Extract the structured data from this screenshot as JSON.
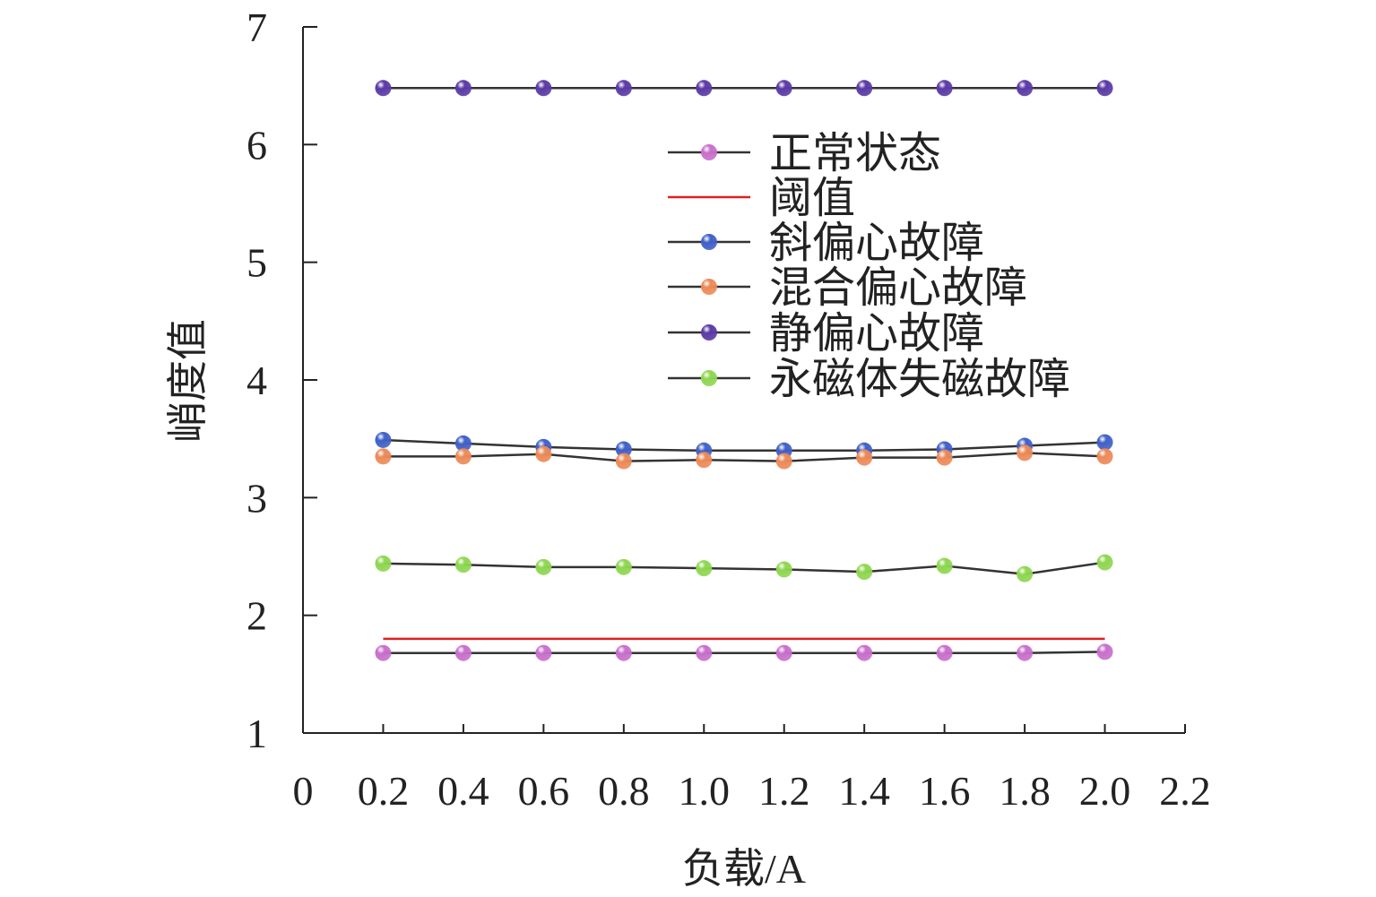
{
  "chart_data": {
    "type": "line",
    "title": "",
    "xlabel": "负载/A",
    "ylabel": "峭度值",
    "xlim": [
      0,
      2.2
    ],
    "ylim": [
      1,
      7
    ],
    "xticks": [
      "0",
      "0.2",
      "0.4",
      "0.6",
      "0.8",
      "1.0",
      "1.2",
      "1.4",
      "1.6",
      "1.8",
      "2.0",
      "2.2"
    ],
    "yticks": [
      "1",
      "2",
      "3",
      "4",
      "5",
      "6",
      "7"
    ],
    "grid": false,
    "legend_position": "top-right",
    "x": [
      0.2,
      0.4,
      0.6,
      0.8,
      1.0,
      1.2,
      1.4,
      1.6,
      1.8,
      2.0
    ],
    "series": [
      {
        "name": "正常状态",
        "color": "#c86fcc",
        "marker": true,
        "values": [
          1.68,
          1.68,
          1.68,
          1.68,
          1.68,
          1.68,
          1.68,
          1.68,
          1.68,
          1.69
        ]
      },
      {
        "name": "阈值",
        "color": "#e02020",
        "marker": false,
        "values": [
          1.8,
          1.8,
          1.8,
          1.8,
          1.8,
          1.8,
          1.8,
          1.8,
          1.8,
          1.8
        ]
      },
      {
        "name": "斜偏心故障",
        "color": "#4060c8",
        "marker": true,
        "values": [
          3.49,
          3.46,
          3.43,
          3.41,
          3.4,
          3.4,
          3.4,
          3.41,
          3.44,
          3.47
        ]
      },
      {
        "name": "混合偏心故障",
        "color": "#ec8a58",
        "marker": true,
        "values": [
          3.35,
          3.35,
          3.37,
          3.31,
          3.32,
          3.31,
          3.34,
          3.34,
          3.38,
          3.35
        ]
      },
      {
        "name": "静偏心故障",
        "color": "#5b3aa6",
        "marker": true,
        "values": [
          6.48,
          6.48,
          6.48,
          6.48,
          6.48,
          6.48,
          6.48,
          6.48,
          6.48,
          6.48
        ]
      },
      {
        "name": "永磁体失磁故障",
        "color": "#8ed650",
        "marker": true,
        "values": [
          2.44,
          2.43,
          2.41,
          2.41,
          2.4,
          2.39,
          2.37,
          2.42,
          2.35,
          2.45
        ]
      }
    ]
  }
}
